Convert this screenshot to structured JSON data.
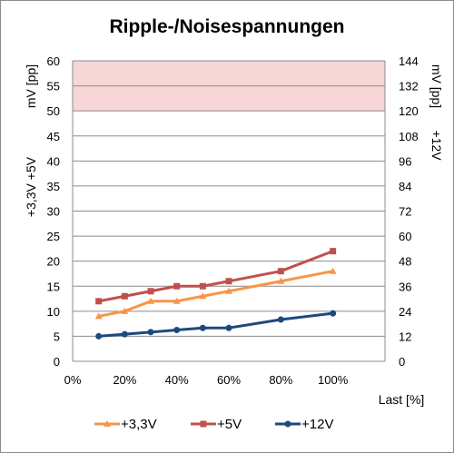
{
  "chart_data": {
    "type": "line",
    "title": "Ripple-/Noisespannungen",
    "x": [
      "10%",
      "20%",
      "30%",
      "40%",
      "50%",
      "60%",
      "80%",
      "100%"
    ],
    "x_values": [
      10,
      20,
      30,
      40,
      50,
      60,
      80,
      100
    ],
    "xlim": [
      0,
      120
    ],
    "x_ticks": [
      "0%",
      "20%",
      "40%",
      "60%",
      "80%",
      "100%"
    ],
    "x_tick_values": [
      0,
      20,
      40,
      60,
      80,
      100
    ],
    "xlabel": "Last [%]",
    "y_left": {
      "label_line1": "mV [pp]",
      "label_line2": "+3,3V +5V",
      "ylim": [
        0,
        60
      ],
      "ticks": [
        0,
        5,
        10,
        15,
        20,
        25,
        30,
        35,
        40,
        45,
        50,
        55,
        60
      ]
    },
    "y_right": {
      "label_line1": "mV [pp]",
      "label_line2": "+12V",
      "ylim": [
        0,
        144
      ],
      "ticks": [
        0,
        12,
        24,
        36,
        48,
        60,
        72,
        84,
        96,
        108,
        120,
        132,
        144
      ]
    },
    "limit_band": {
      "axis": "left",
      "from": 50,
      "to": 60,
      "color": "#f6d6d6"
    },
    "series": [
      {
        "name": "+3,3V",
        "axis": "left",
        "color": "#f79646",
        "marker": "triangle",
        "values": [
          9,
          10,
          12,
          12,
          13,
          14,
          16,
          18
        ]
      },
      {
        "name": "+5V",
        "axis": "left",
        "color": "#c0504d",
        "marker": "square",
        "values": [
          12,
          13,
          14,
          15,
          15,
          16,
          18,
          22
        ]
      },
      {
        "name": "+12V",
        "axis": "right",
        "color": "#1f497d",
        "marker": "circle",
        "values": [
          12,
          13,
          14,
          15,
          16,
          16,
          20,
          23
        ]
      }
    ],
    "grid": true,
    "legend": "bottom"
  }
}
